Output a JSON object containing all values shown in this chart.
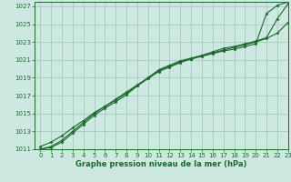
{
  "title": "Graphe pression niveau de la mer (hPa)",
  "background_color": "#cce8e0",
  "grid_color": "#aacfc8",
  "line_color": "#1a6b2a",
  "xlim": [
    -0.5,
    23
  ],
  "ylim": [
    1011,
    1027.5
  ],
  "yticks": [
    1011,
    1013,
    1015,
    1017,
    1019,
    1021,
    1023,
    1025,
    1027
  ],
  "xticks": [
    0,
    1,
    2,
    3,
    4,
    5,
    6,
    7,
    8,
    9,
    10,
    11,
    12,
    13,
    14,
    15,
    16,
    17,
    18,
    19,
    20,
    21,
    22,
    23
  ],
  "lines": [
    [
      1011.3,
      1011.8,
      1012.5,
      1013.4,
      1014.2,
      1015.1,
      1015.8,
      1016.6,
      1017.4,
      1018.2,
      1019.0,
      1019.8,
      1020.3,
      1020.8,
      1021.1,
      1021.4,
      1021.7,
      1022.0,
      1022.2,
      1022.5,
      1022.8,
      1026.2,
      1027.1,
      1027.5
    ],
    [
      1011.0,
      1011.3,
      1012.0,
      1013.0,
      1014.0,
      1015.0,
      1015.8,
      1016.5,
      1017.3,
      1018.1,
      1018.9,
      1019.7,
      1020.2,
      1020.7,
      1021.1,
      1021.5,
      1021.9,
      1022.3,
      1022.5,
      1022.8,
      1023.1,
      1023.5,
      1025.6,
      1027.3
    ],
    [
      1011.0,
      1011.2,
      1011.8,
      1012.8,
      1013.8,
      1014.8,
      1015.6,
      1016.3,
      1017.1,
      1018.1,
      1019.0,
      1019.9,
      1020.4,
      1020.9,
      1021.2,
      1021.5,
      1021.8,
      1022.1,
      1022.4,
      1022.7,
      1023.0,
      1023.4,
      1024.0,
      1025.2
    ]
  ],
  "title_fontsize": 6,
  "tick_fontsize": 5
}
